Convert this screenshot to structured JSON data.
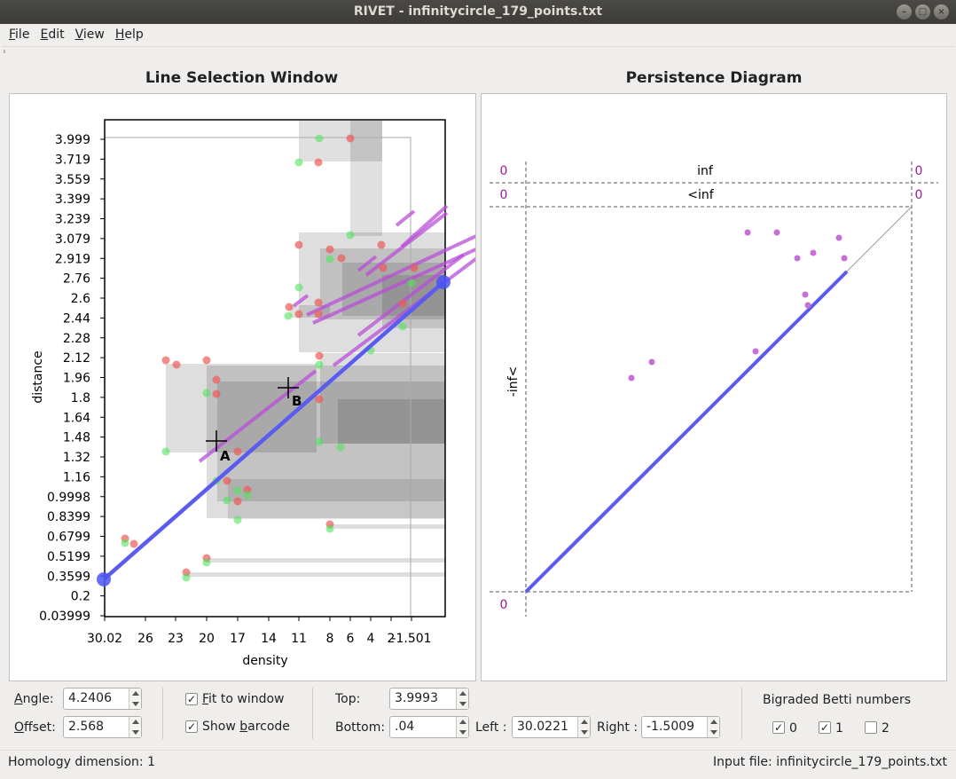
{
  "window": {
    "title": "RIVET - infinitycircle_179_points.txt",
    "btn_min": "–",
    "btn_max": "□",
    "btn_close": "×"
  },
  "menu": {
    "file": {
      "mnemonic": "F",
      "rest": "ile"
    },
    "edit": {
      "mnemonic": "E",
      "rest": "dit"
    },
    "view": {
      "mnemonic": "V",
      "rest": "iew"
    },
    "help": {
      "mnemonic": "H",
      "rest": "elp"
    }
  },
  "line_selection": {
    "title": "Line Selection Window",
    "xlabel": "density",
    "ylabel": "distance",
    "x_ticks": [
      "30.02",
      "26",
      "23",
      "20",
      "17",
      "14",
      "11",
      "8",
      "6",
      "4",
      "2",
      "-1.501"
    ],
    "y_ticks": [
      "3.999",
      "3.719",
      "3.559",
      "3.399",
      "3.239",
      "3.079",
      "2.919",
      "2.76",
      "2.6",
      "2.44",
      "2.28",
      "2.12",
      "1.96",
      "1.8",
      "1.64",
      "1.48",
      "1.32",
      "1.16",
      "0.9998",
      "0.8399",
      "0.6799",
      "0.5199",
      "0.3599",
      "0.2",
      "0.03999"
    ],
    "label_a": "A",
    "label_b": "B"
  },
  "persistence": {
    "title": "Persistence Diagram",
    "inf_label": "inf",
    "lt_inf_label": "<inf",
    "neg_inf_label": "-inf<",
    "count_top_left": "0",
    "count_top_right": "0",
    "count_lt_left": "0",
    "count_lt_right": "0",
    "count_bottom_left": "0",
    "accent_color": "#c03cc0"
  },
  "controls": {
    "angle_label_m": "A",
    "angle_label_rest": "ngle:",
    "angle_value": "4.2406",
    "offset_label_m": "O",
    "offset_label_rest": "ffset:",
    "offset_value": "2.568",
    "fit_label_m": "F",
    "fit_label_rest": "it to window",
    "fit_checked": "✓",
    "barcode_label_pre": "Show ",
    "barcode_label_m": "b",
    "barcode_label_rest": "arcode",
    "barcode_checked": "✓",
    "top_label": "Top:",
    "top_value": "3.9993",
    "bottom_label": "Bottom:",
    "bottom_value": ".04",
    "left_label": "Left :",
    "left_value": "30.0221",
    "right_label": "Right :",
    "right_value": "-1.5009",
    "betti_title": "Bigraded Betti numbers",
    "betti_0_label": "0",
    "betti_0_checked": "✓",
    "betti_1_label": "1",
    "betti_1_checked": "✓",
    "betti_2_label": "2"
  },
  "status": {
    "homology": "Homology dimension: 1",
    "input_file": "Input file: infinitycircle_179_points.txt"
  }
}
